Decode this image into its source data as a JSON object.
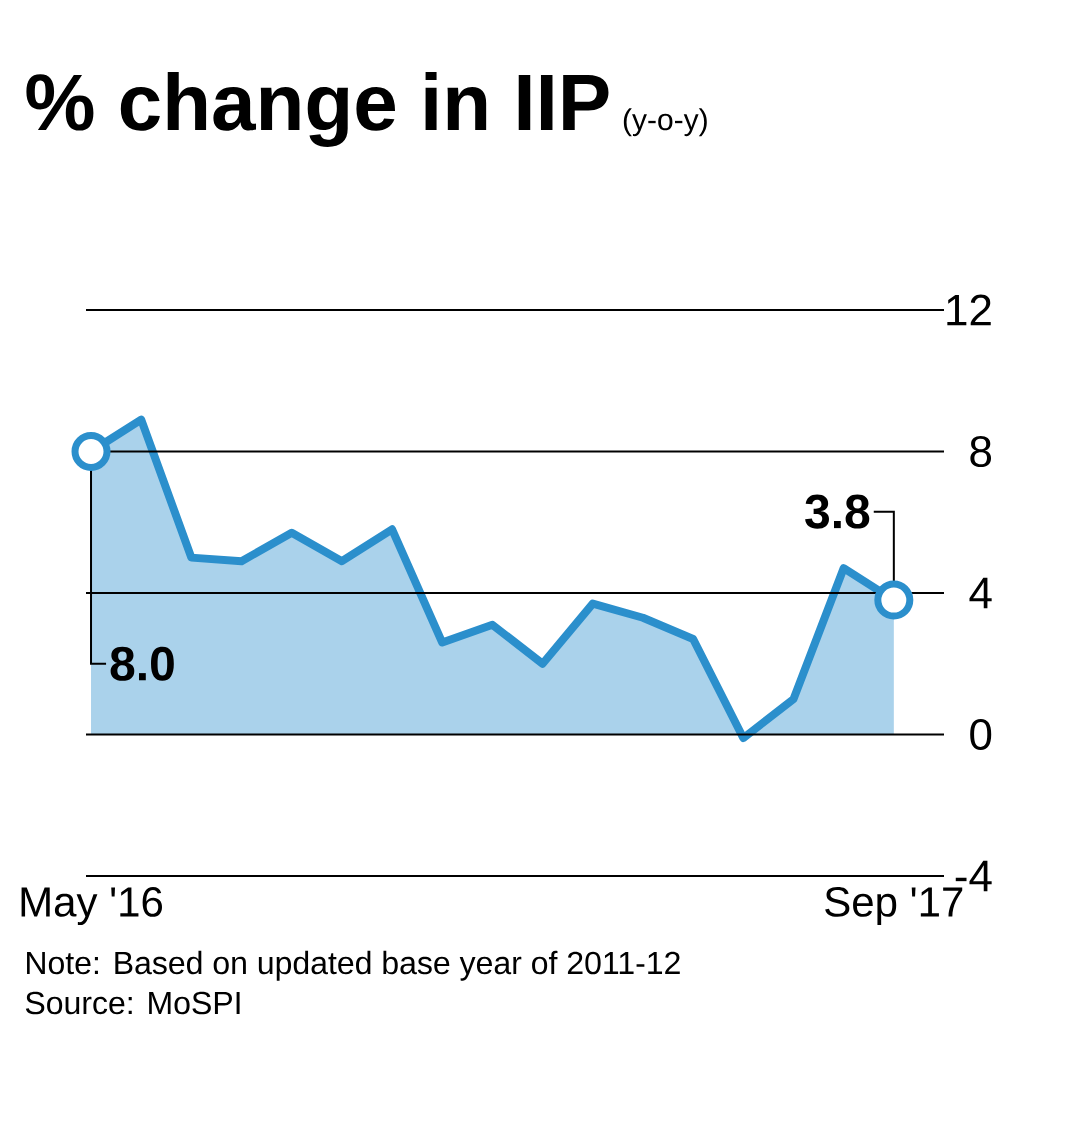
{
  "chart_data": {
    "type": "area",
    "title": "% change in IIP",
    "subtitle": "(y-o-y)",
    "categories": [
      "May '16",
      null,
      null,
      null,
      null,
      null,
      null,
      null,
      null,
      null,
      null,
      null,
      null,
      null,
      null,
      null,
      "Sep '17"
    ],
    "series": [
      {
        "color": "#2b8fcc",
        "values": [
          8.0,
          8.9,
          5.0,
          4.9,
          5.7,
          4.9,
          5.8,
          2.6,
          3.1,
          2.0,
          3.7,
          3.3,
          2.7,
          -0.1,
          1.0,
          4.7,
          3.8
        ]
      }
    ],
    "ylim": [
      -4,
      12
    ],
    "yticks": [
      -4,
      0,
      4,
      8,
      12
    ],
    "grid": "y",
    "annotations": [
      {
        "text": "8.0",
        "x": "May '16",
        "y": 8.0
      },
      {
        "text": "3.8",
        "x": "Sep '17",
        "y": 3.8
      },
      "Note: Based on updated base year of 2011-12",
      "Source: MoSPI"
    ]
  }
}
